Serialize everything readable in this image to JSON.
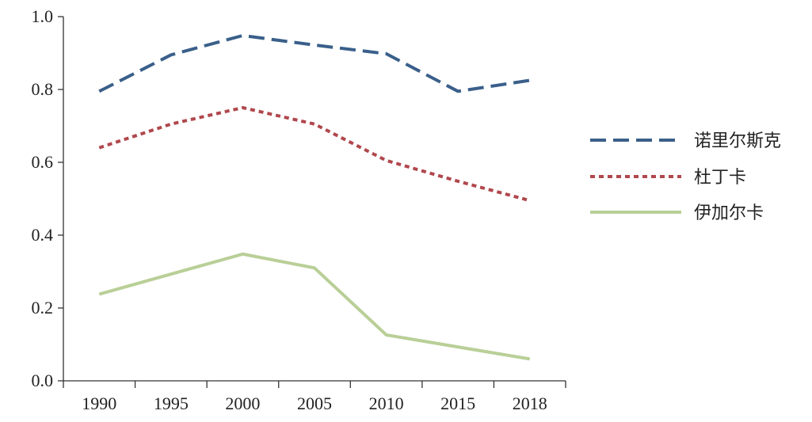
{
  "chart_data": {
    "type": "line",
    "x": [
      "1990",
      "1995",
      "2000",
      "2005",
      "2010",
      "2015",
      "2018"
    ],
    "series": [
      {
        "name": "诺里尔斯克",
        "values": [
          0.795,
          0.895,
          0.948,
          0.922,
          0.898,
          0.795,
          0.825
        ],
        "color": "#3a5f8a",
        "style": "dashed"
      },
      {
        "name": "杜丁卡",
        "values": [
          0.64,
          0.705,
          0.75,
          0.705,
          0.605,
          0.548,
          0.495
        ],
        "color": "#b0474d",
        "style": "dotted"
      },
      {
        "name": "伊加尔卡",
        "values": [
          0.238,
          null,
          0.348,
          0.31,
          0.126,
          null,
          0.06
        ],
        "color": "#b9cf97",
        "style": "solid"
      }
    ],
    "y_ticks": [
      "0.0",
      "0.2",
      "0.4",
      "0.6",
      "0.8",
      "1.0"
    ],
    "ylim": [
      0,
      1.0
    ],
    "title": "",
    "xlabel": "",
    "ylabel": "",
    "grid": false,
    "legend_position": "right"
  }
}
